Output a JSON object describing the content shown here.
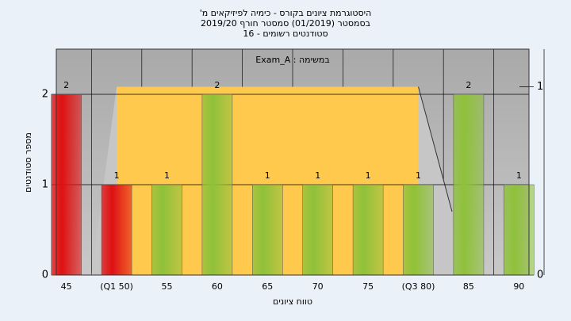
{
  "chart_data": {
    "type": "bar",
    "title": [
      "היסטוגרמת ציונים בקורס - כימיה לפיזיקאים מ'",
      "בסמסטר  (01/2019)  סמסטר חורף 2019/20",
      "סטודנטים רשומים - 16"
    ],
    "subtitle": "במשימה : Exam_A",
    "xlabel": "טווח ציונים",
    "ylabel": "מספר סטודנטים",
    "x": [
      45,
      50,
      55,
      60,
      65,
      70,
      75,
      80,
      85,
      90
    ],
    "xlim": [
      44,
      91
    ],
    "xticks": [
      45,
      {
        "value": 50,
        "label": "(Q1 50)"
      },
      55,
      60,
      65,
      70,
      75,
      {
        "value": 80,
        "label": "(Q3 80)"
      },
      85,
      90
    ],
    "values": [
      2,
      1,
      1,
      2,
      1,
      1,
      1,
      1,
      2,
      1
    ],
    "colors": [
      "#e01010",
      "#e01010",
      "#8fc13a",
      "#8fc13a",
      "#8fc13a",
      "#8fc13a",
      "#8fc13a",
      "#8fc13a",
      "#8fc13a",
      "#8fc13a"
    ],
    "ylim": [
      0,
      2.5
    ],
    "yticks": [
      0,
      1,
      2
    ],
    "y2lim": [
      0,
      1.2
    ],
    "y2ticks": [
      0,
      1
    ],
    "quartile_box": {
      "q1": 50,
      "q3": 80,
      "value": 1,
      "axis": "y2",
      "color": "#ffc94d"
    },
    "grid": true
  }
}
